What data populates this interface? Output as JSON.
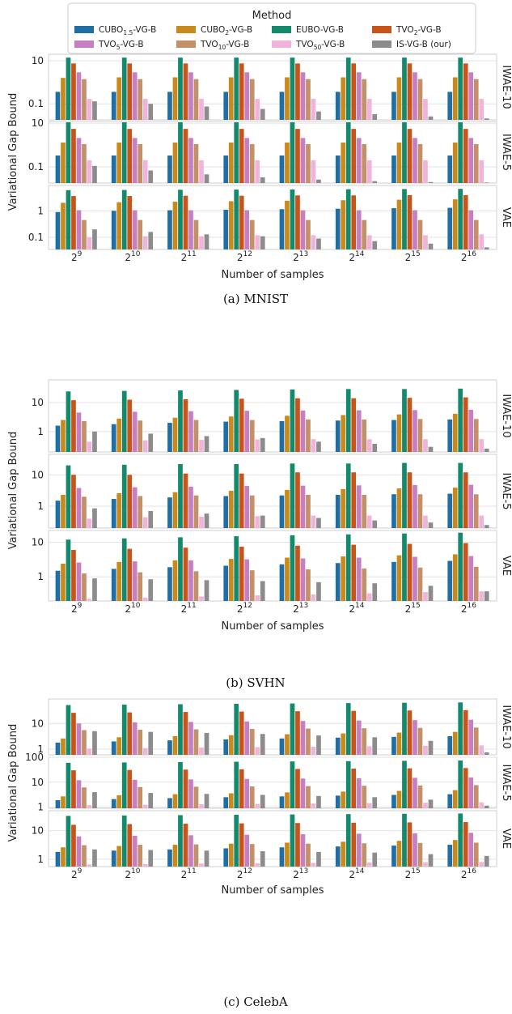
{
  "legend": {
    "title": "Method",
    "items": [
      {
        "key": "cubo15",
        "label": "CUBO",
        "sub": "1.5",
        "suffix": "-VG-B",
        "color": "#1f6fa6"
      },
      {
        "key": "cubo2",
        "label": "CUBO",
        "sub": "2",
        "suffix": "-VG-B",
        "color": "#c98a1b"
      },
      {
        "key": "eubo",
        "label": "EUBO-VG-B",
        "sub": "",
        "suffix": "",
        "color": "#138a6c"
      },
      {
        "key": "tvo2",
        "label": "TVO",
        "sub": "2",
        "suffix": "-VG-B",
        "color": "#c9541a"
      },
      {
        "key": "tvo5",
        "label": "TVO",
        "sub": "5",
        "suffix": "-VG-B",
        "color": "#c67fc2"
      },
      {
        "key": "tvo10",
        "label": "TVO",
        "sub": "10",
        "suffix": "-VG-B",
        "color": "#c39068"
      },
      {
        "key": "tvo50",
        "label": "TVO",
        "sub": "50",
        "suffix": "-VG-B",
        "color": "#f0b4dc"
      },
      {
        "key": "is",
        "label": "IS-VG-B (our)",
        "sub": "",
        "suffix": "",
        "color": "#8c8c8c"
      }
    ]
  },
  "shared": {
    "ylabel": "Variational Gap Bound",
    "xlabel": "Number of samples",
    "categories": [
      "2^9",
      "2^10",
      "2^11",
      "2^12",
      "2^13",
      "2^14",
      "2^15",
      "2^16"
    ]
  },
  "chart_data": [
    {
      "type": "bar",
      "caption": "(a) MNIST",
      "panels": [
        {
          "label": "IWAE-10",
          "yscale": "log",
          "ylim": [
            0.018,
            20
          ],
          "yticks": [
            {
              "v": 10,
              "t": "10"
            },
            {
              "v": 0.1,
              "t": "0.1"
            }
          ],
          "series": {
            "cubo15": [
              0.36,
              0.36,
              0.36,
              0.36,
              0.36,
              0.36,
              0.36,
              0.36
            ],
            "cubo2": [
              1.6,
              1.7,
              1.7,
              1.7,
              1.7,
              1.7,
              1.7,
              1.7
            ],
            "eubo": [
              14,
              14,
              14,
              14,
              14,
              14,
              14,
              14
            ],
            "tvo2": [
              7.5,
              7.5,
              7.5,
              7.5,
              7.5,
              7.5,
              7.5,
              7.5
            ],
            "tvo5": [
              2.9,
              2.9,
              2.9,
              2.9,
              2.9,
              2.9,
              2.9,
              2.9
            ],
            "tvo10": [
              1.4,
              1.4,
              1.4,
              1.4,
              1.4,
              1.4,
              1.4,
              1.4
            ],
            "tvo50": [
              0.17,
              0.17,
              0.17,
              0.17,
              0.17,
              0.17,
              0.17,
              0.17
            ],
            "is": [
              0.13,
              0.1,
              0.075,
              0.058,
              0.044,
              0.033,
              0.026,
              0.021
            ]
          }
        },
        {
          "label": "IWAE-5",
          "yscale": "log",
          "ylim": [
            0.018,
            12
          ],
          "yticks": [
            {
              "v": 10,
              "t": "10"
            },
            {
              "v": 0.1,
              "t": "0.1"
            }
          ],
          "series": {
            "cubo15": [
              0.33,
              0.33,
              0.33,
              0.33,
              0.33,
              0.33,
              0.33,
              0.33
            ],
            "cubo2": [
              1.3,
              1.3,
              1.3,
              1.3,
              1.3,
              1.3,
              1.3,
              1.3
            ],
            "eubo": [
              11,
              11,
              11,
              11,
              11,
              11,
              11,
              11
            ],
            "tvo2": [
              5.5,
              5.5,
              5.5,
              5.5,
              5.5,
              5.5,
              5.5,
              5.5
            ],
            "tvo5": [
              2.1,
              2.1,
              2.1,
              2.1,
              2.1,
              2.1,
              2.1,
              2.1
            ],
            "tvo10": [
              1.1,
              1.1,
              1.1,
              1.1,
              1.1,
              1.1,
              1.1,
              1.1
            ],
            "tvo50": [
              0.2,
              0.2,
              0.2,
              0.2,
              0.2,
              0.2,
              0.2,
              0.2
            ],
            "is": [
              0.11,
              0.068,
              0.045,
              0.033,
              0.026,
              0.022,
              0.02,
              0.019
            ]
          }
        },
        {
          "label": "VAE",
          "yscale": "log",
          "ylim": [
            0.035,
            9
          ],
          "yticks": [
            {
              "v": 1,
              "t": "1"
            },
            {
              "v": 0.1,
              "t": "0.1"
            }
          ],
          "series": {
            "cubo15": [
              0.9,
              1.0,
              1.05,
              1.1,
              1.15,
              1.2,
              1.25,
              1.3
            ],
            "cubo2": [
              2.0,
              2.1,
              2.2,
              2.3,
              2.4,
              2.5,
              2.6,
              2.7
            ],
            "eubo": [
              6.0,
              6.1,
              6.2,
              6.3,
              6.4,
              6.5,
              6.6,
              6.7
            ],
            "tvo2": [
              3.6,
              3.6,
              3.7,
              3.7,
              3.8,
              3.8,
              3.9,
              3.9
            ],
            "tvo5": [
              1.05,
              1.05,
              1.05,
              1.05,
              1.05,
              1.05,
              1.05,
              1.05
            ],
            "tvo10": [
              0.45,
              0.45,
              0.45,
              0.45,
              0.45,
              0.45,
              0.45,
              0.45
            ],
            "tvo50": [
              0.1,
              0.11,
              0.11,
              0.12,
              0.12,
              0.12,
              0.12,
              0.13
            ],
            "is": [
              0.2,
              0.16,
              0.13,
              0.11,
              0.09,
              0.072,
              0.058,
              0.042
            ]
          }
        }
      ]
    },
    {
      "type": "bar",
      "caption": "(b) SVHN",
      "panels": [
        {
          "label": "IWAE-10",
          "yscale": "log",
          "ylim": [
            0.2,
            60
          ],
          "yticks": [
            {
              "v": 10,
              "t": "10"
            },
            {
              "v": 1,
              "t": "1"
            }
          ],
          "series": {
            "cubo15": [
              1.6,
              1.8,
              2.0,
              2.2,
              2.3,
              2.4,
              2.5,
              2.6
            ],
            "cubo2": [
              2.5,
              2.8,
              3.0,
              3.3,
              3.5,
              3.7,
              3.9,
              4.1
            ],
            "eubo": [
              24,
              25,
              26,
              27,
              28,
              29,
              29,
              30
            ],
            "tvo2": [
              12,
              12.5,
              13,
              13.5,
              14,
              14,
              14.5,
              15
            ],
            "tvo5": [
              4.5,
              4.8,
              5.0,
              5.2,
              5.3,
              5.4,
              5.5,
              5.6
            ],
            "tvo10": [
              2.3,
              2.4,
              2.5,
              2.5,
              2.6,
              2.6,
              2.7,
              2.7
            ],
            "tvo50": [
              0.45,
              0.5,
              0.52,
              0.54,
              0.55,
              0.55,
              0.55,
              0.55
            ],
            "is": [
              1.0,
              0.85,
              0.7,
              0.6,
              0.45,
              0.38,
              0.3,
              0.26
            ]
          }
        },
        {
          "label": "IWAE-5",
          "yscale": "log",
          "ylim": [
            0.2,
            45
          ],
          "yticks": [
            {
              "v": 10,
              "t": "10"
            },
            {
              "v": 1,
              "t": "1"
            }
          ],
          "series": {
            "cubo15": [
              1.5,
              1.7,
              1.9,
              2.1,
              2.2,
              2.3,
              2.4,
              2.5
            ],
            "cubo2": [
              2.3,
              2.6,
              2.8,
              3.1,
              3.3,
              3.5,
              3.7,
              3.9
            ],
            "eubo": [
              20,
              21,
              22,
              22,
              23,
              23,
              24,
              24
            ],
            "tvo2": [
              10,
              10,
              11,
              11,
              12,
              12,
              12,
              12
            ],
            "tvo5": [
              3.8,
              4.0,
              4.2,
              4.4,
              4.5,
              4.6,
              4.7,
              4.8
            ],
            "tvo10": [
              2.0,
              2.1,
              2.2,
              2.2,
              2.3,
              2.3,
              2.4,
              2.4
            ],
            "tvo50": [
              0.4,
              0.44,
              0.46,
              0.48,
              0.5,
              0.5,
              0.5,
              0.5
            ],
            "is": [
              0.85,
              0.7,
              0.58,
              0.5,
              0.42,
              0.35,
              0.3,
              0.25
            ]
          }
        },
        {
          "label": "VAE",
          "yscale": "log",
          "ylim": [
            0.2,
            22
          ],
          "yticks": [
            {
              "v": 10,
              "t": "10"
            },
            {
              "v": 1,
              "t": "1"
            }
          ],
          "series": {
            "cubo15": [
              1.5,
              1.7,
              1.9,
              2.1,
              2.3,
              2.5,
              2.7,
              2.9
            ],
            "cubo2": [
              2.4,
              2.7,
              3.0,
              3.3,
              3.6,
              3.9,
              4.2,
              4.5
            ],
            "eubo": [
              12,
              13,
              14,
              15,
              16,
              17,
              18,
              19
            ],
            "tvo2": [
              6,
              6.5,
              7,
              7.5,
              8,
              8.5,
              9,
              9.5
            ],
            "tvo5": [
              2.6,
              2.8,
              3.0,
              3.2,
              3.4,
              3.6,
              3.8,
              4.0
            ],
            "tvo10": [
              1.25,
              1.35,
              1.45,
              1.55,
              1.65,
              1.75,
              1.85,
              1.95
            ],
            "tvo50": [
              0.23,
              0.25,
              0.27,
              0.29,
              0.31,
              0.33,
              0.36,
              0.38
            ],
            "is": [
              0.9,
              0.85,
              0.8,
              0.75,
              0.7,
              0.65,
              0.55,
              0.38
            ]
          }
        }
      ]
    },
    {
      "type": "bar",
      "caption": "(c) CelebA",
      "panels": [
        {
          "label": "IWAE-10",
          "yscale": "log",
          "ylim": [
            0.6,
            90
          ],
          "yticks": [
            {
              "v": 10,
              "t": "10"
            },
            {
              "v": 1,
              "t": "1"
            }
          ],
          "series": {
            "cubo15": [
              1.8,
              2.0,
              2.2,
              2.4,
              2.6,
              2.8,
              3.0,
              3.2
            ],
            "cubo2": [
              2.6,
              2.9,
              3.2,
              3.5,
              3.8,
              4.1,
              4.4,
              4.7
            ],
            "eubo": [
              52,
              54,
              56,
              58,
              60,
              62,
              64,
              66
            ],
            "tvo2": [
              26,
              27,
              28,
              29,
              30,
              31,
              32,
              33
            ],
            "tvo5": [
              10,
              11,
              11.5,
              12,
              12.5,
              13,
              13.5,
              14
            ],
            "tvo10": [
              5.5,
              5.7,
              5.9,
              6.1,
              6.3,
              6.5,
              6.7,
              6.9
            ],
            "tvo50": [
              1.05,
              1.1,
              1.15,
              1.2,
              1.25,
              1.3,
              1.35,
              1.4
            ],
            "is": [
              5.0,
              4.7,
              4.3,
              3.9,
              3.4,
              2.9,
              2.1,
              0.75
            ]
          }
        },
        {
          "label": "IWAE-5",
          "yscale": "log",
          "ylim": [
            0.9,
            100
          ],
          "yticks": [
            {
              "v": 100,
              "t": "100"
            },
            {
              "v": 10,
              "t": "10"
            },
            {
              "v": 1,
              "t": "1"
            }
          ],
          "series": {
            "cubo15": [
              1.9,
              2.1,
              2.3,
              2.5,
              2.7,
              2.9,
              3.1,
              3.3
            ],
            "cubo2": [
              2.7,
              3.0,
              3.3,
              3.6,
              3.9,
              4.2,
              4.5,
              4.8
            ],
            "eubo": [
              60,
              62,
              64,
              66,
              68,
              70,
              72,
              74
            ],
            "tvo2": [
              30,
              31,
              32,
              33,
              34,
              35,
              36,
              37
            ],
            "tvo5": [
              12,
              12.5,
              13,
              13.5,
              14,
              14.5,
              15,
              15.5
            ],
            "tvo10": [
              6.2,
              6.4,
              6.6,
              6.8,
              7,
              7.2,
              7.4,
              7.6
            ],
            "tvo50": [
              1.2,
              1.25,
              1.3,
              1.35,
              1.4,
              1.45,
              1.5,
              1.55
            ],
            "is": [
              4.0,
              3.7,
              3.4,
              3.1,
              2.8,
              2.5,
              2.0,
              1.15
            ]
          }
        },
        {
          "label": "VAE",
          "yscale": "log",
          "ylim": [
            0.55,
            50
          ],
          "yticks": [
            {
              "v": 10,
              "t": "10"
            },
            {
              "v": 1,
              "t": "1"
            }
          ],
          "series": {
            "cubo15": [
              1.8,
              2.0,
              2.2,
              2.4,
              2.6,
              2.8,
              3.0,
              3.2
            ],
            "cubo2": [
              2.6,
              2.9,
              3.2,
              3.5,
              3.8,
              4.1,
              4.4,
              4.7
            ],
            "eubo": [
              33,
              34,
              35,
              36,
              37,
              38,
              39,
              40
            ],
            "tvo2": [
              16,
              17,
              17.5,
              18,
              18.5,
              19,
              19.5,
              20
            ],
            "tvo5": [
              6.3,
              6.6,
              6.9,
              7.2,
              7.5,
              7.8,
              8.1,
              8.4
            ],
            "tvo10": [
              3.1,
              3.2,
              3.3,
              3.4,
              3.5,
              3.6,
              3.7,
              3.8
            ],
            "tvo50": [
              0.65,
              0.68,
              0.7,
              0.72,
              0.74,
              0.76,
              0.78,
              0.8
            ],
            "is": [
              2.2,
              2.1,
              2.0,
              1.9,
              1.8,
              1.7,
              1.5,
              1.3
            ]
          }
        }
      ]
    }
  ]
}
